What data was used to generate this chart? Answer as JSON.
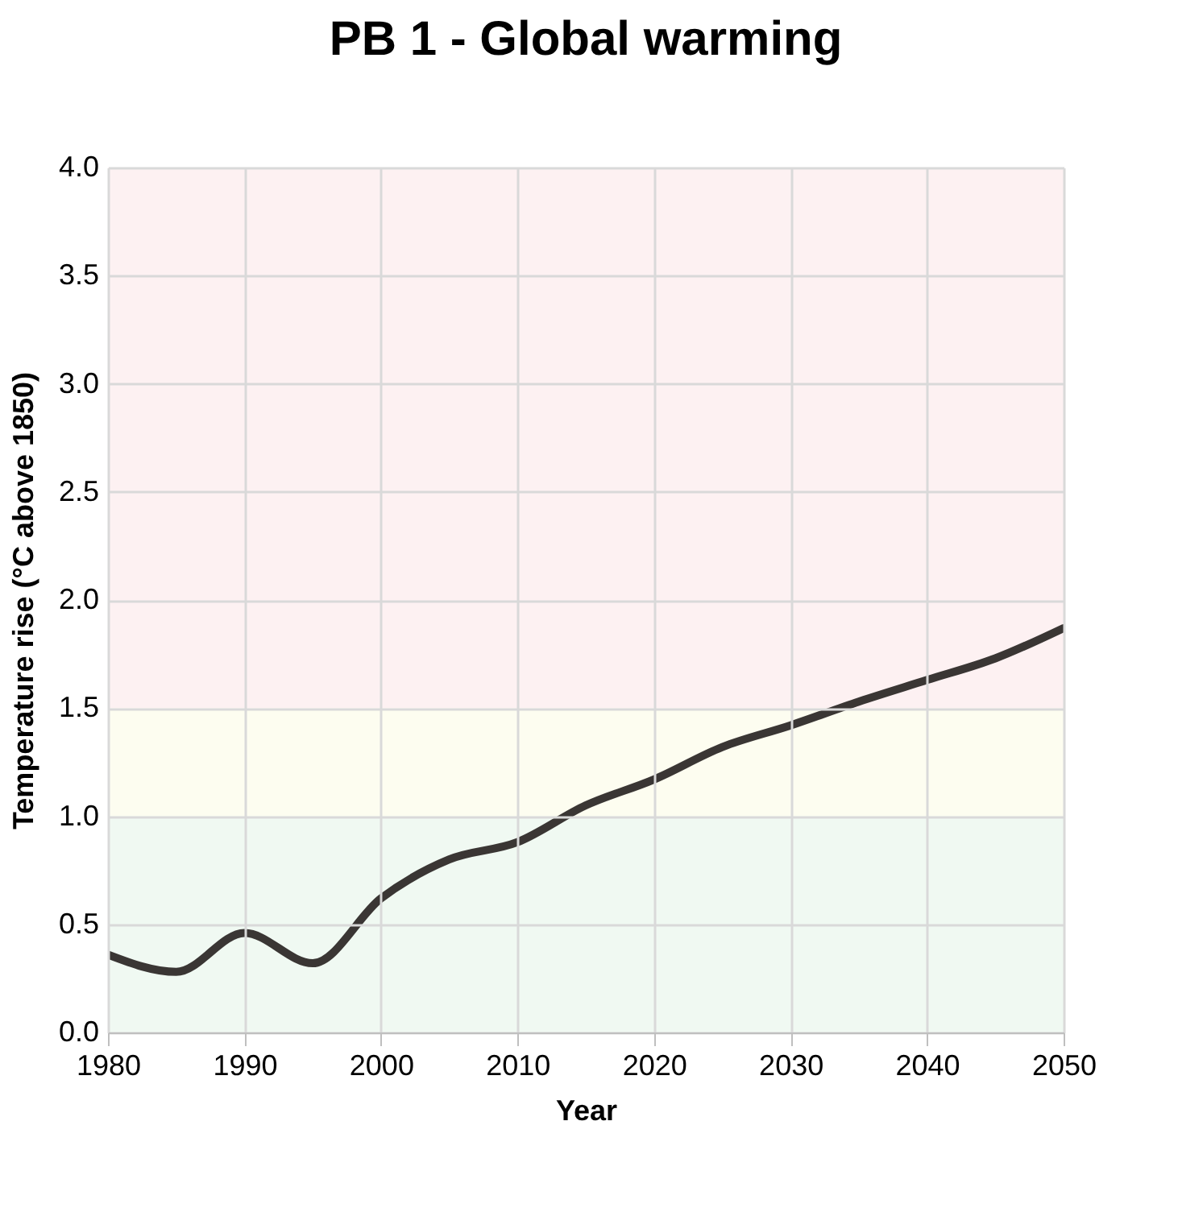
{
  "chart_data": {
    "type": "line",
    "title": "PB 1 - Global warming",
    "xlabel": "Year",
    "ylabel": "Temperature rise (°C above 1850)",
    "x": [
      1980,
      1985,
      1990,
      1995,
      2000,
      2005,
      2010,
      2015,
      2020,
      2025,
      2030,
      2035,
      2040,
      2045,
      2050
    ],
    "series": [
      {
        "color": "#3a3634",
        "values": [
          0.36,
          0.28,
          0.46,
          0.32,
          0.62,
          0.8,
          0.88,
          1.05,
          1.17,
          1.32,
          1.42,
          1.53,
          1.63,
          1.73,
          1.87
        ]
      }
    ],
    "xlim": [
      1980,
      2050
    ],
    "xticks": [
      1980,
      1990,
      2000,
      2010,
      2020,
      2030,
      2040,
      2050
    ],
    "ylim": [
      0,
      4
    ],
    "yticks": [
      {
        "value": 0,
        "label": "0.0"
      },
      {
        "value": 0.5,
        "label": "0.5"
      },
      {
        "value": 1,
        "label": "1.0"
      },
      {
        "value": 1.5,
        "label": "1.5"
      },
      {
        "value": 2,
        "label": "2.0"
      },
      {
        "value": 2.5,
        "label": "2.5"
      },
      {
        "value": 3,
        "label": "3.0"
      },
      {
        "value": 3.5,
        "label": "3.5"
      },
      {
        "value": 4,
        "label": "4.0"
      }
    ],
    "bands": [
      {
        "axis": "y",
        "from": 0,
        "to": 1,
        "color": "#f0f9f2"
      },
      {
        "axis": "y",
        "from": 1,
        "to": 1.5,
        "color": "#fdfdf0"
      },
      {
        "axis": "y",
        "from": 1.5,
        "to": 4,
        "color": "#fdf1f2"
      }
    ],
    "grid": true,
    "marker": "none",
    "line_style": "solid"
  }
}
